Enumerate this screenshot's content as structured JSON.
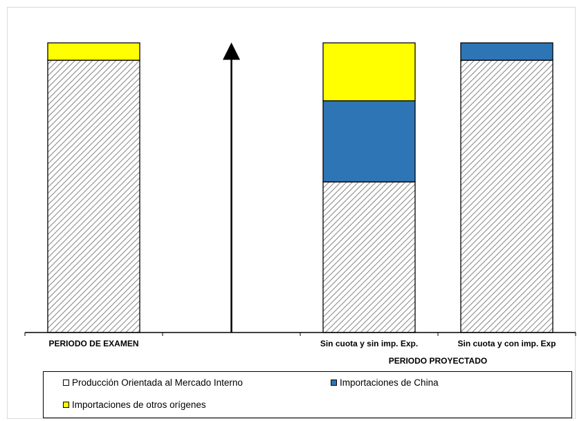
{
  "chart_data": {
    "type": "bar",
    "stacked": true,
    "normalized": true,
    "categories": [
      "PERIODO DE EXAMEN",
      "",
      "Sin cuota y sin imp. Exp.",
      "Sin cuota y con imp. Exp"
    ],
    "group_label": "PERIODO PROYECTADO",
    "series": [
      {
        "name": "Producción Orientada al Mercado Interno",
        "color": "#d9d9d9",
        "pattern": "diagonal-hatch",
        "values": [
          94,
          null,
          52,
          94
        ]
      },
      {
        "name": "Importaciones de China",
        "color": "#2e75b6",
        "values": [
          0,
          null,
          28,
          6
        ]
      },
      {
        "name": "Importaciones de otros orígenes",
        "color": "#ffff00",
        "values": [
          6,
          null,
          20,
          0
        ]
      }
    ],
    "ylim": [
      0,
      100
    ],
    "arrow": {
      "category_index": 1,
      "direction": "up"
    },
    "legend_position": "bottom"
  }
}
